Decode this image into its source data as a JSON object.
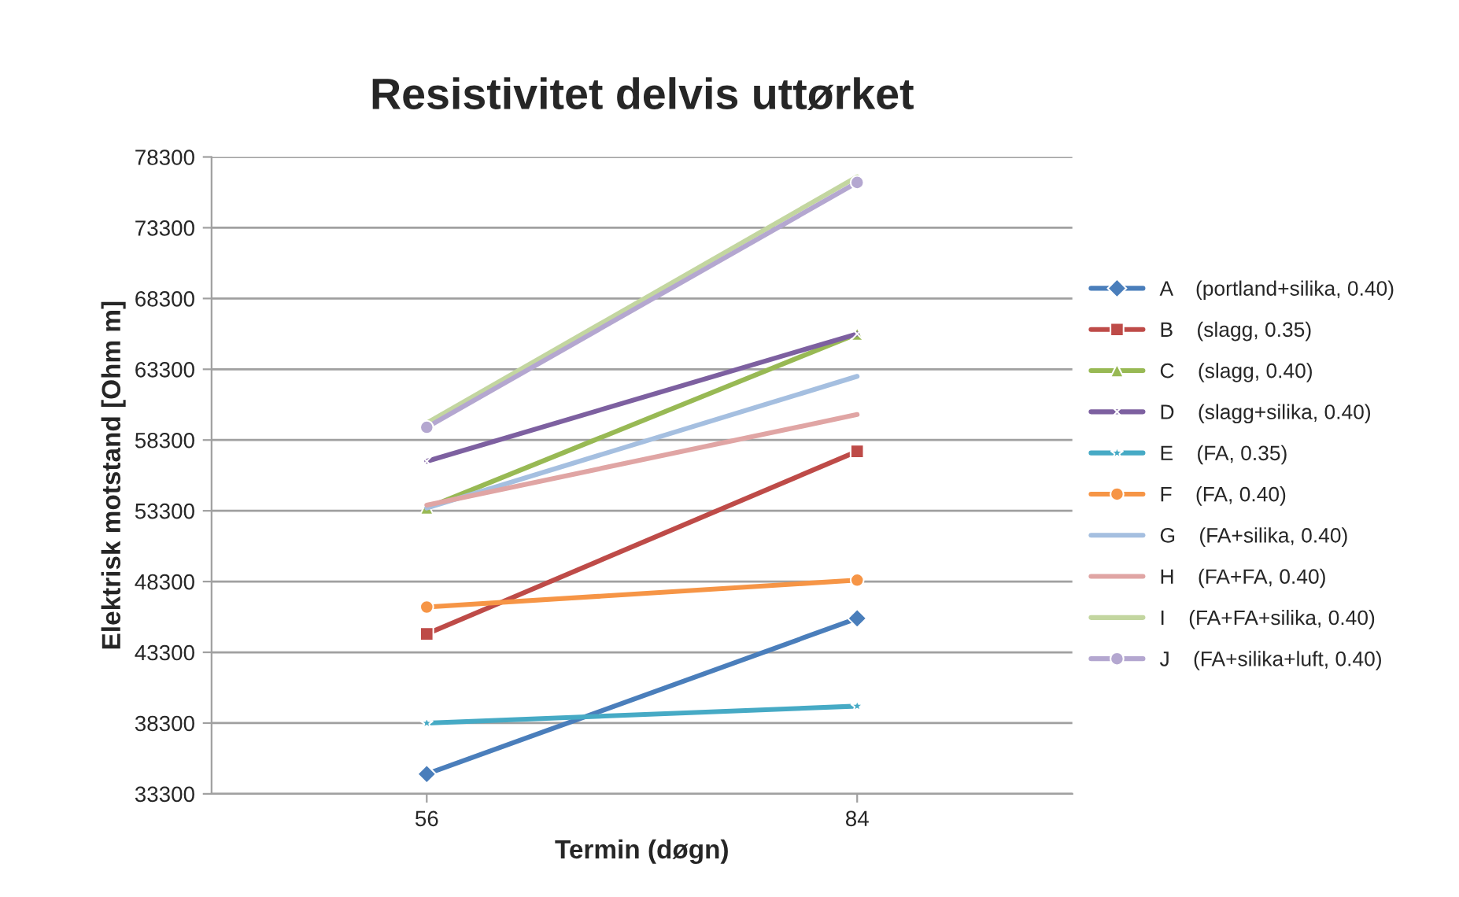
{
  "chart_data": {
    "type": "line",
    "title": "Resistivitet delvis uttørket",
    "xlabel": "Termin (døgn)",
    "ylabel": "Elektrisk motstand [Ohm m]",
    "categories": [
      "56",
      "84"
    ],
    "series": [
      {
        "name": "A    (portland+silika, 0.40)",
        "color": "#4a7ebb",
        "marker": "diamond",
        "values": [
          34700,
          45700
        ]
      },
      {
        "name": "B    (slagg, 0.35)",
        "color": "#be4b48",
        "marker": "square",
        "values": [
          44600,
          57500
        ]
      },
      {
        "name": "C    (slagg, 0.40)",
        "color": "#98b954",
        "marker": "triangle",
        "values": [
          53500,
          65800
        ]
      },
      {
        "name": "D    (slagg+silika, 0.40)",
        "color": "#7d60a0",
        "marker": "cross",
        "values": [
          56800,
          65800
        ]
      },
      {
        "name": "E    (FA, 0.35)",
        "color": "#46aac5",
        "marker": "star",
        "values": [
          38300,
          39500
        ]
      },
      {
        "name": "F    (FA, 0.40)",
        "color": "#f69546",
        "marker": "circle",
        "values": [
          46500,
          48400
        ]
      },
      {
        "name": "G    (FA+silika, 0.40)",
        "color": "#a5bfe0",
        "marker": "none",
        "values": [
          53500,
          62800
        ]
      },
      {
        "name": "H    (FA+FA, 0.40)",
        "color": "#e0a5a4",
        "marker": "none",
        "values": [
          53700,
          60100
        ]
      },
      {
        "name": "I    (FA+FA+silika, 0.40)",
        "color": "#c3d6a0",
        "marker": "none",
        "values": [
          59500,
          76900
        ]
      },
      {
        "name": "J    (FA+silika+luft, 0.40)",
        "color": "#b4a7d0",
        "marker": "circle",
        "values": [
          59200,
          76500
        ]
      }
    ],
    "ylim": [
      33300,
      78300
    ],
    "yticks": [
      33300,
      38300,
      43300,
      48300,
      53300,
      58300,
      63300,
      68300,
      73300,
      78300
    ],
    "grid": "y",
    "legend": "right"
  }
}
